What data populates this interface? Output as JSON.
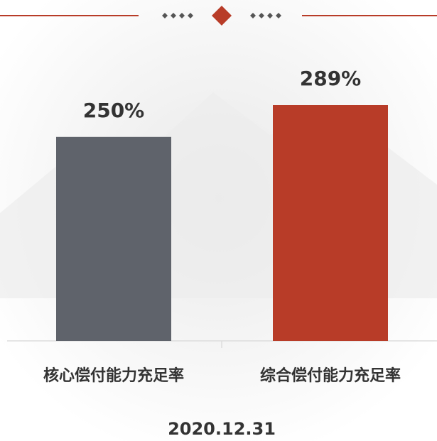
{
  "chart_data": {
    "type": "bar",
    "categories": [
      "核心偿付能力充足率",
      "综合偿付能力充足率"
    ],
    "values": [
      250,
      289
    ],
    "value_labels": [
      "250%",
      "289%"
    ],
    "colors": [
      "#5f636b",
      "#b83c28"
    ],
    "xlabel": "2020.12.31"
  }
}
